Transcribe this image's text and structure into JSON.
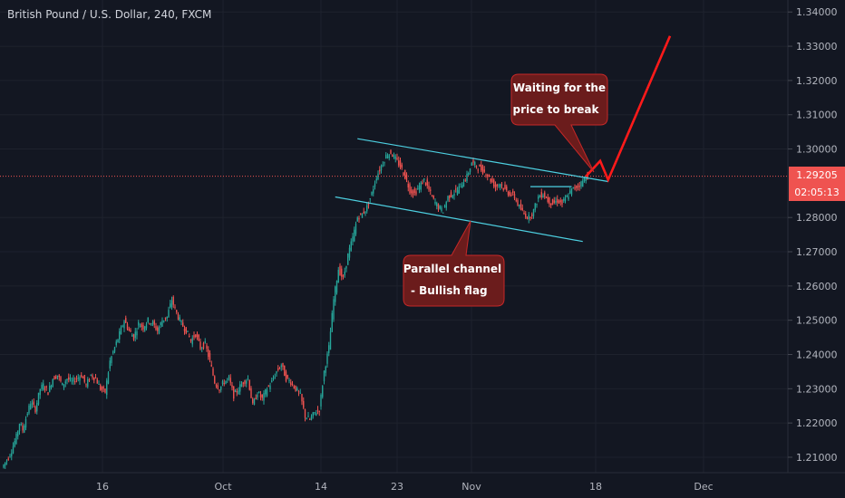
{
  "header": {
    "title": "British Pound / U.S. Dollar, 240, FXCM"
  },
  "price_line": {
    "value": "1.29205",
    "countdown": "02:05:13"
  },
  "callouts": {
    "top": {
      "line1": "Waiting for the",
      "line2": "price to break"
    },
    "bottom": {
      "line1": "Parallel channel",
      "line2": "- Bullish flag"
    }
  },
  "colors": {
    "background": "#131722",
    "up": "#26a69a",
    "down": "#ef5350",
    "channel": "#4dd0e1",
    "projection": "#ff1a1a",
    "callout_fill": "#6b1c1c"
  },
  "chart_data": {
    "type": "candlestick",
    "title": "British Pound / U.S. Dollar, 240, FXCM",
    "x_ticks": [
      "16",
      "Oct",
      "14",
      "23",
      "Nov",
      "18",
      "Dec"
    ],
    "y_ticks": [
      "1.34000",
      "1.33000",
      "1.32000",
      "1.31000",
      "1.30000",
      "1.29205",
      "1.28000",
      "1.27000",
      "1.26000",
      "1.25000",
      "1.24000",
      "1.23000",
      "1.22000",
      "1.21000"
    ],
    "ylim": [
      1.2055,
      1.3435
    ],
    "last_price": 1.29205,
    "path": [
      [
        0,
        1.207
      ],
      [
        4,
        1.21
      ],
      [
        6,
        1.212
      ],
      [
        9,
        1.216
      ],
      [
        11,
        1.22
      ],
      [
        13,
        1.218
      ],
      [
        16,
        1.223
      ],
      [
        18,
        1.226
      ],
      [
        21,
        1.224
      ],
      [
        24,
        1.23
      ],
      [
        26,
        1.231
      ],
      [
        29,
        1.229
      ],
      [
        32,
        1.233
      ],
      [
        35,
        1.234
      ],
      [
        38,
        1.231
      ],
      [
        41,
        1.233
      ],
      [
        44,
        1.232
      ],
      [
        47,
        1.233
      ],
      [
        50,
        1.234
      ],
      [
        53,
        1.231
      ],
      [
        56,
        1.234
      ],
      [
        59,
        1.233
      ],
      [
        62,
        1.23
      ],
      [
        65,
        1.229
      ],
      [
        68,
        1.238
      ],
      [
        71,
        1.242
      ],
      [
        74,
        1.246
      ],
      [
        77,
        1.25
      ],
      [
        80,
        1.247
      ],
      [
        83,
        1.245
      ],
      [
        86,
        1.249
      ],
      [
        89,
        1.248
      ],
      [
        92,
        1.25
      ],
      [
        95,
        1.249
      ],
      [
        98,
        1.247
      ],
      [
        101,
        1.25
      ],
      [
        104,
        1.251
      ],
      [
        107,
        1.256
      ],
      [
        110,
        1.252
      ],
      [
        113,
        1.249
      ],
      [
        116,
        1.247
      ],
      [
        119,
        1.244
      ],
      [
        122,
        1.246
      ],
      [
        125,
        1.242
      ],
      [
        128,
        1.243
      ],
      [
        131,
        1.238
      ],
      [
        134,
        1.232
      ],
      [
        137,
        1.23
      ],
      [
        140,
        1.232
      ],
      [
        143,
        1.233
      ],
      [
        146,
        1.228
      ],
      [
        149,
        1.23
      ],
      [
        152,
        1.232
      ],
      [
        155,
        1.233
      ],
      [
        158,
        1.225
      ],
      [
        161,
        1.229
      ],
      [
        164,
        1.227
      ],
      [
        167,
        1.23
      ],
      [
        170,
        1.232
      ],
      [
        173,
        1.235
      ],
      [
        176,
        1.237
      ],
      [
        179,
        1.233
      ],
      [
        182,
        1.232
      ],
      [
        185,
        1.23
      ],
      [
        188,
        1.228
      ],
      [
        191,
        1.222
      ],
      [
        194,
        1.221
      ],
      [
        197,
        1.223
      ],
      [
        200,
        1.224
      ],
      [
        203,
        1.235
      ],
      [
        206,
        1.242
      ],
      [
        209,
        1.256
      ],
      [
        212,
        1.265
      ],
      [
        215,
        1.262
      ],
      [
        218,
        1.269
      ],
      [
        221,
        1.274
      ],
      [
        224,
        1.28
      ],
      [
        227,
        1.281
      ],
      [
        230,
        1.283
      ],
      [
        233,
        1.287
      ],
      [
        236,
        1.292
      ],
      [
        239,
        1.295
      ],
      [
        242,
        1.298
      ],
      [
        245,
        1.299
      ],
      [
        248,
        1.297
      ],
      [
        251,
        1.295
      ],
      [
        254,
        1.292
      ],
      [
        257,
        1.288
      ],
      [
        260,
        1.287
      ],
      [
        263,
        1.289
      ],
      [
        266,
        1.291
      ],
      [
        269,
        1.288
      ],
      [
        272,
        1.285
      ],
      [
        275,
        1.283
      ],
      [
        278,
        1.282
      ],
      [
        281,
        1.286
      ],
      [
        284,
        1.287
      ],
      [
        287,
        1.288
      ],
      [
        290,
        1.29
      ],
      [
        293,
        1.292
      ],
      [
        296,
        1.296
      ],
      [
        299,
        1.295
      ],
      [
        302,
        1.294
      ],
      [
        305,
        1.293
      ],
      [
        308,
        1.291
      ],
      [
        311,
        1.289
      ],
      [
        314,
        1.29
      ],
      [
        317,
        1.288
      ],
      [
        320,
        1.287
      ],
      [
        323,
        1.286
      ],
      [
        326,
        1.283
      ],
      [
        329,
        1.281
      ],
      [
        332,
        1.28
      ],
      [
        335,
        1.282
      ],
      [
        338,
        1.286
      ],
      [
        341,
        1.287
      ],
      [
        344,
        1.285
      ],
      [
        347,
        1.284
      ],
      [
        350,
        1.285
      ],
      [
        353,
        1.284
      ],
      [
        356,
        1.286
      ],
      [
        359,
        1.288
      ],
      [
        362,
        1.289
      ],
      [
        365,
        1.29
      ],
      [
        368,
        1.292
      ]
    ],
    "annotations": [
      {
        "type": "trendline",
        "label": "channel upper",
        "from": [
          223,
          1.303
        ],
        "to": [
          381,
          1.2905
        ]
      },
      {
        "type": "trendline",
        "label": "channel lower",
        "from": [
          209,
          1.286
        ],
        "to": [
          365,
          1.273
        ]
      },
      {
        "type": "horizontal",
        "label": "resistance",
        "from": [
          332,
          1.289
        ],
        "to": [
          358,
          1.289
        ]
      },
      {
        "type": "projection",
        "points": [
          [
            367,
            1.292
          ],
          [
            376,
            1.2965
          ],
          [
            381,
            1.291
          ],
          [
            420,
            1.333
          ]
        ]
      },
      {
        "type": "callout",
        "text": "Waiting for the price to break"
      },
      {
        "type": "callout",
        "text": "Parallel channel - Bullish flag"
      }
    ]
  }
}
